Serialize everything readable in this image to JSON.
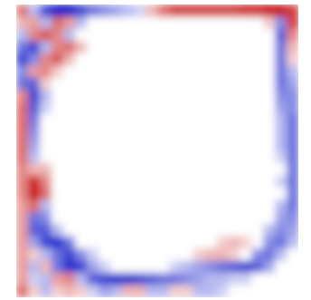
{
  "chart_data": {
    "type": "heatmap",
    "tick_labels": false,
    "zlim": [
      -1,
      1
    ],
    "values": [
      [
        0.6,
        -0.3,
        -0.8,
        -1,
        -1,
        -0.8,
        -0.6,
        -0.5,
        -0.4,
        -0.3,
        -0.2,
        0.3,
        0.6,
        0.8,
        0.8,
        0.8,
        0.8,
        0.8,
        0.8,
        0.9,
        0.9,
        1,
        1,
        0.8
      ],
      [
        0.3,
        0.4,
        -0.3,
        0.6,
        0.4,
        -0.3,
        0,
        0,
        0,
        0,
        0,
        0,
        0,
        0,
        0,
        0,
        0,
        0,
        0,
        0,
        0,
        0.2,
        -0.5,
        0.8
      ],
      [
        -0.3,
        0.5,
        0.7,
        0.5,
        -0.3,
        0,
        0,
        0,
        0,
        0,
        0,
        0,
        0,
        0,
        0,
        0,
        0,
        0,
        0,
        0,
        0,
        0,
        -0.7,
        0.5
      ],
      [
        -0.6,
        -0.8,
        -0.3,
        0.5,
        0.6,
        0.3,
        0,
        0,
        0,
        0,
        0,
        0,
        0,
        0,
        0,
        0,
        0,
        0,
        0,
        0,
        0,
        0,
        -0.6,
        0.3
      ],
      [
        -0.8,
        -0.5,
        0.5,
        0.7,
        0.3,
        0,
        0,
        0,
        0,
        0,
        0,
        0,
        0,
        0,
        0,
        0,
        0,
        0,
        0,
        0,
        0,
        0,
        -0.6,
        0.2
      ],
      [
        -0.5,
        0.4,
        0.5,
        0.2,
        0,
        0,
        0,
        0,
        0,
        0,
        0,
        0,
        0,
        0,
        0,
        0,
        0,
        0,
        0,
        0,
        0,
        0,
        -0.6,
        -0.3
      ],
      [
        -0.6,
        -0.7,
        0.2,
        0,
        0,
        0,
        0,
        0,
        0,
        0,
        0,
        0,
        0,
        0,
        0,
        0,
        0,
        0,
        0,
        0,
        0,
        0,
        -0.6,
        -0.4
      ],
      [
        0.5,
        -0.8,
        -0.3,
        0,
        0,
        0,
        0,
        0,
        0,
        0,
        0,
        0,
        0,
        0,
        0,
        0,
        0,
        0,
        0,
        0,
        0,
        0,
        -0.5,
        -0.5
      ],
      [
        0.6,
        -0.7,
        -0.2,
        0,
        0,
        0,
        0,
        0,
        0,
        0,
        0,
        0,
        0,
        0,
        0,
        0,
        0,
        0,
        0,
        0,
        0,
        0,
        -0.4,
        -0.5
      ],
      [
        0.6,
        -0.6,
        0,
        0,
        0,
        0,
        0,
        0,
        0,
        0,
        0,
        0,
        0,
        0,
        0,
        0,
        0,
        0,
        0,
        0,
        0,
        0,
        -0.3,
        -0.6
      ],
      [
        0.6,
        -0.5,
        0,
        0,
        0,
        0,
        0,
        0,
        0,
        0,
        0,
        0,
        0,
        0,
        0,
        0,
        0,
        0,
        0,
        0,
        0,
        0,
        -0.3,
        -0.6
      ],
      [
        0.6,
        -0.4,
        0,
        0,
        0,
        0,
        0,
        0,
        0,
        0,
        0,
        0,
        0,
        0,
        0,
        0,
        0,
        0,
        0,
        0,
        0,
        0,
        -0.3,
        -0.6
      ],
      [
        0.6,
        -0.3,
        0,
        0,
        0,
        0,
        0,
        0,
        0,
        0,
        0,
        0,
        0,
        0,
        0,
        0,
        0,
        0,
        0,
        0,
        0,
        0,
        -0.2,
        -0.6
      ],
      [
        0.5,
        0.3,
        0.3,
        0,
        0,
        0,
        0,
        0,
        0,
        0,
        0,
        0,
        0,
        0,
        0,
        0,
        0,
        0,
        0,
        0,
        0,
        0,
        0,
        -0.6
      ],
      [
        0.5,
        0.9,
        0.5,
        0,
        0,
        0,
        0,
        0,
        0,
        0,
        0,
        0,
        0,
        0,
        0,
        0,
        0,
        0,
        0,
        0,
        0,
        0,
        -0.2,
        -0.6
      ],
      [
        0.5,
        1,
        0.6,
        0,
        0,
        0,
        0,
        0,
        0,
        0,
        0,
        0,
        0,
        0,
        0,
        0,
        0,
        0,
        0,
        0,
        0,
        0,
        0,
        -0.6
      ],
      [
        0.4,
        0.6,
        -0.3,
        0,
        0,
        0,
        0,
        0,
        0,
        0,
        0,
        0,
        0,
        0,
        0,
        0,
        0,
        0,
        0,
        0,
        0,
        0,
        -0.3,
        -0.6
      ],
      [
        0.4,
        -0.6,
        -0.5,
        0,
        0,
        0,
        0,
        0,
        0,
        0,
        0,
        0,
        0,
        0,
        0,
        0,
        0,
        0,
        0,
        0,
        0,
        0,
        -0.4,
        -0.5
      ],
      [
        0.4,
        -0.7,
        -0.7,
        -0.3,
        0,
        0,
        0,
        0,
        0,
        0,
        0,
        0,
        0,
        0,
        0,
        0,
        0,
        0,
        0,
        0,
        0,
        -0.3,
        -0.5,
        -0.4
      ],
      [
        0.4,
        -0.4,
        -0.8,
        -0.9,
        -0.6,
        0,
        0,
        0,
        0,
        0,
        0,
        0,
        0,
        0,
        0,
        0,
        0,
        0.2,
        0.3,
        0.2,
        0,
        -0.5,
        -0.6,
        -0.3
      ],
      [
        0.4,
        0.2,
        -0.3,
        -0.6,
        -0.8,
        -0.5,
        -0.2,
        0,
        0,
        0,
        0,
        0,
        0,
        0,
        0,
        0.2,
        0.3,
        0.3,
        0.2,
        0,
        -0.5,
        -0.6,
        -0.3,
        0
      ],
      [
        0.4,
        -0.3,
        0.3,
        -0.6,
        -0.9,
        -0.8,
        -0.4,
        -0.2,
        0,
        0,
        0,
        0,
        0,
        -0.2,
        -0.3,
        -0.4,
        -0.5,
        -0.6,
        -0.7,
        -0.8,
        -0.7,
        -0.4,
        0,
        0
      ],
      [
        0.4,
        -0.2,
        -0.3,
        0.4,
        0.5,
        -0.3,
        -0.7,
        -0.8,
        -0.9,
        -0.9,
        -0.8,
        -0.7,
        -0.6,
        -0.6,
        -0.5,
        -0.4,
        -0.3,
        -0.3,
        -0.2,
        -0.2,
        0,
        0,
        0,
        0
      ],
      [
        0.6,
        0.2,
        -0.3,
        0.2,
        0.3,
        0.2,
        -0.2,
        -0.4,
        -0.3,
        0.3,
        0.3,
        -0.3,
        -0.3,
        0.2,
        0.2,
        -0.3,
        -0.3,
        -0.2,
        0,
        0,
        0,
        0,
        0,
        0
      ]
    ]
  }
}
